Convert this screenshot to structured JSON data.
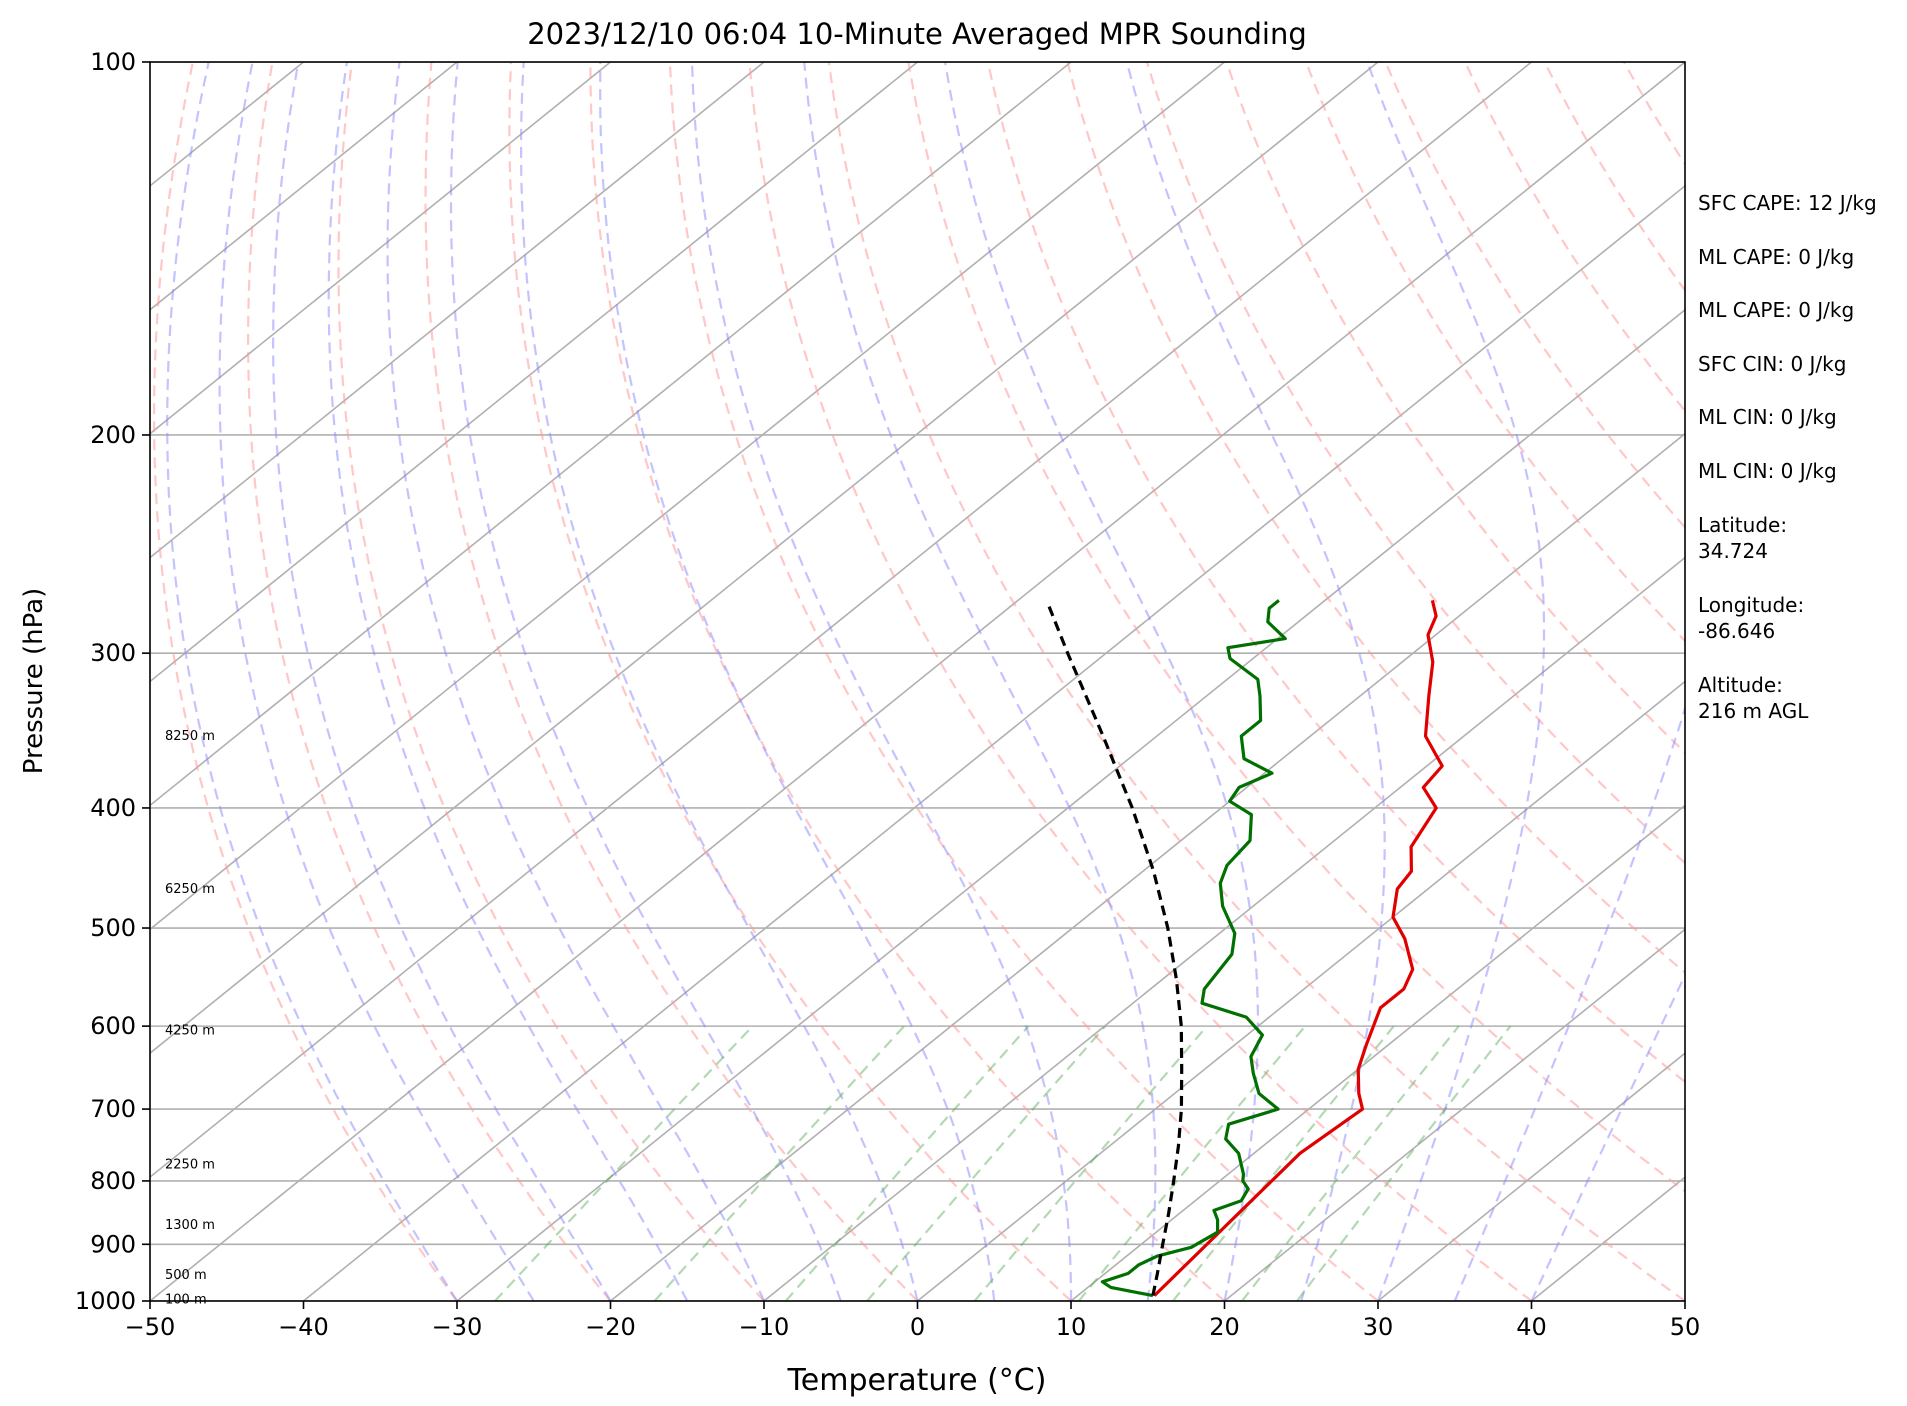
{
  "chart_data": {
    "type": "line",
    "title": "2023/12/10 06:04 10-Minute Averaged MPR Sounding",
    "xlabel": "Temperature (°C)",
    "ylabel": "Pressure (hPa)",
    "xlim": [
      -50,
      50
    ],
    "ylim": [
      1000,
      100
    ],
    "y_scale": "log",
    "skew": true,
    "grid": true,
    "x_ticks": [
      -50,
      -40,
      -30,
      -20,
      -10,
      0,
      10,
      20,
      30,
      40,
      50
    ],
    "x_tick_labels": [
      "−50",
      "−40",
      "−30",
      "−20",
      "−10",
      "0",
      "10",
      "20",
      "30",
      "40",
      "50"
    ],
    "y_ticks": [
      1000,
      900,
      800,
      700,
      600,
      500,
      400,
      300,
      200,
      100
    ],
    "y_tick_labels": [
      "1000",
      "900",
      "800",
      "700",
      "600",
      "500",
      "400",
      "300",
      "200",
      "100"
    ],
    "height_labels": [
      {
        "text": "100 m",
        "p": 997
      },
      {
        "text": "500 m",
        "p": 953
      },
      {
        "text": "1300 m",
        "p": 868
      },
      {
        "text": "2250 m",
        "p": 776
      },
      {
        "text": "4250 m",
        "p": 605
      },
      {
        "text": "6250 m",
        "p": 465
      },
      {
        "text": "8250 m",
        "p": 350
      }
    ],
    "series": [
      {
        "color": "#e00000",
        "points": [
          {
            "p": 990,
            "t": 15.0
          },
          {
            "p": 760,
            "t": 13.0
          },
          {
            "p": 700,
            "t": 13.5
          },
          {
            "p": 680,
            "t": 12.0
          },
          {
            "p": 650,
            "t": 10.0
          },
          {
            "p": 620,
            "t": 8.5
          },
          {
            "p": 580,
            "t": 6.5
          },
          {
            "p": 560,
            "t": 6.5
          },
          {
            "p": 540,
            "t": 5.5
          },
          {
            "p": 510,
            "t": 2.5
          },
          {
            "p": 490,
            "t": 0.0
          },
          {
            "p": 465,
            "t": -2.0
          },
          {
            "p": 450,
            "t": -2.5
          },
          {
            "p": 430,
            "t": -4.5
          },
          {
            "p": 400,
            "t": -6.0
          },
          {
            "p": 385,
            "t": -8.5
          },
          {
            "p": 370,
            "t": -9.0
          },
          {
            "p": 350,
            "t": -12.5
          },
          {
            "p": 325,
            "t": -15.5
          },
          {
            "p": 305,
            "t": -18.0
          },
          {
            "p": 290,
            "t": -20.5
          },
          {
            "p": 280,
            "t": -21.5
          },
          {
            "p": 272,
            "t": -23.0
          }
        ]
      },
      {
        "color": "#007000",
        "points": [
          {
            "p": 990,
            "t": 14.9
          },
          {
            "p": 975,
            "t": 11.5
          },
          {
            "p": 965,
            "t": 10.5
          },
          {
            "p": 950,
            "t": 11.5
          },
          {
            "p": 935,
            "t": 11.5
          },
          {
            "p": 920,
            "t": 12.0
          },
          {
            "p": 905,
            "t": 13.5
          },
          {
            "p": 880,
            "t": 14.0
          },
          {
            "p": 860,
            "t": 13.0
          },
          {
            "p": 845,
            "t": 12.0
          },
          {
            "p": 830,
            "t": 13.0
          },
          {
            "p": 812,
            "t": 12.5
          },
          {
            "p": 800,
            "t": 11.5
          },
          {
            "p": 790,
            "t": 11.0
          },
          {
            "p": 760,
            "t": 9.0
          },
          {
            "p": 740,
            "t": 7.0
          },
          {
            "p": 720,
            "t": 6.0
          },
          {
            "p": 700,
            "t": 8.0
          },
          {
            "p": 680,
            "t": 5.5
          },
          {
            "p": 655,
            "t": 3.5
          },
          {
            "p": 635,
            "t": 2.0
          },
          {
            "p": 610,
            "t": 1.0
          },
          {
            "p": 590,
            "t": -1.5
          },
          {
            "p": 575,
            "t": -5.5
          },
          {
            "p": 560,
            "t": -6.5
          },
          {
            "p": 525,
            "t": -7.5
          },
          {
            "p": 505,
            "t": -9.0
          },
          {
            "p": 480,
            "t": -12.0
          },
          {
            "p": 460,
            "t": -14.0
          },
          {
            "p": 445,
            "t": -15.0
          },
          {
            "p": 425,
            "t": -15.5
          },
          {
            "p": 405,
            "t": -17.5
          },
          {
            "p": 395,
            "t": -20.0
          },
          {
            "p": 385,
            "t": -20.5
          },
          {
            "p": 375,
            "t": -19.5
          },
          {
            "p": 365,
            "t": -22.5
          },
          {
            "p": 350,
            "t": -24.5
          },
          {
            "p": 340,
            "t": -24.5
          },
          {
            "p": 325,
            "t": -26.5
          },
          {
            "p": 315,
            "t": -28.0
          },
          {
            "p": 303,
            "t": -31.5
          },
          {
            "p": 297,
            "t": -32.5
          },
          {
            "p": 292,
            "t": -29.5
          },
          {
            "p": 283,
            "t": -32.0
          },
          {
            "p": 276,
            "t": -33.0
          },
          {
            "p": 272,
            "t": -33.0
          }
        ]
      },
      {
        "color": "#000000",
        "dashed": true,
        "points": [
          {
            "p": 990,
            "t": 14.9
          },
          {
            "p": 950,
            "t": 13.4
          },
          {
            "p": 900,
            "t": 11.4
          },
          {
            "p": 850,
            "t": 9.3
          },
          {
            "p": 800,
            "t": 7.0
          },
          {
            "p": 750,
            "t": 4.5
          },
          {
            "p": 700,
            "t": 1.7
          },
          {
            "p": 650,
            "t": -1.5
          },
          {
            "p": 600,
            "t": -5.0
          },
          {
            "p": 550,
            "t": -9.1
          },
          {
            "p": 500,
            "t": -13.8
          },
          {
            "p": 450,
            "t": -19.3
          },
          {
            "p": 400,
            "t": -25.8
          },
          {
            "p": 350,
            "t": -33.5
          },
          {
            "p": 300,
            "t": -42.5
          },
          {
            "p": 275,
            "t": -47.5
          }
        ]
      }
    ]
  },
  "side_panel": [
    "SFC CAPE: 12 J/kg",
    "ML CAPE: 0 J/kg",
    "ML CAPE: 0 J/kg",
    "SFC CIN: 0 J/kg",
    "ML CIN: 0 J/kg",
    "ML CIN: 0 J/kg",
    "Latitude:\n34.724",
    "Longitude:\n-86.646",
    "Altitude:\n216 m AGL"
  ]
}
